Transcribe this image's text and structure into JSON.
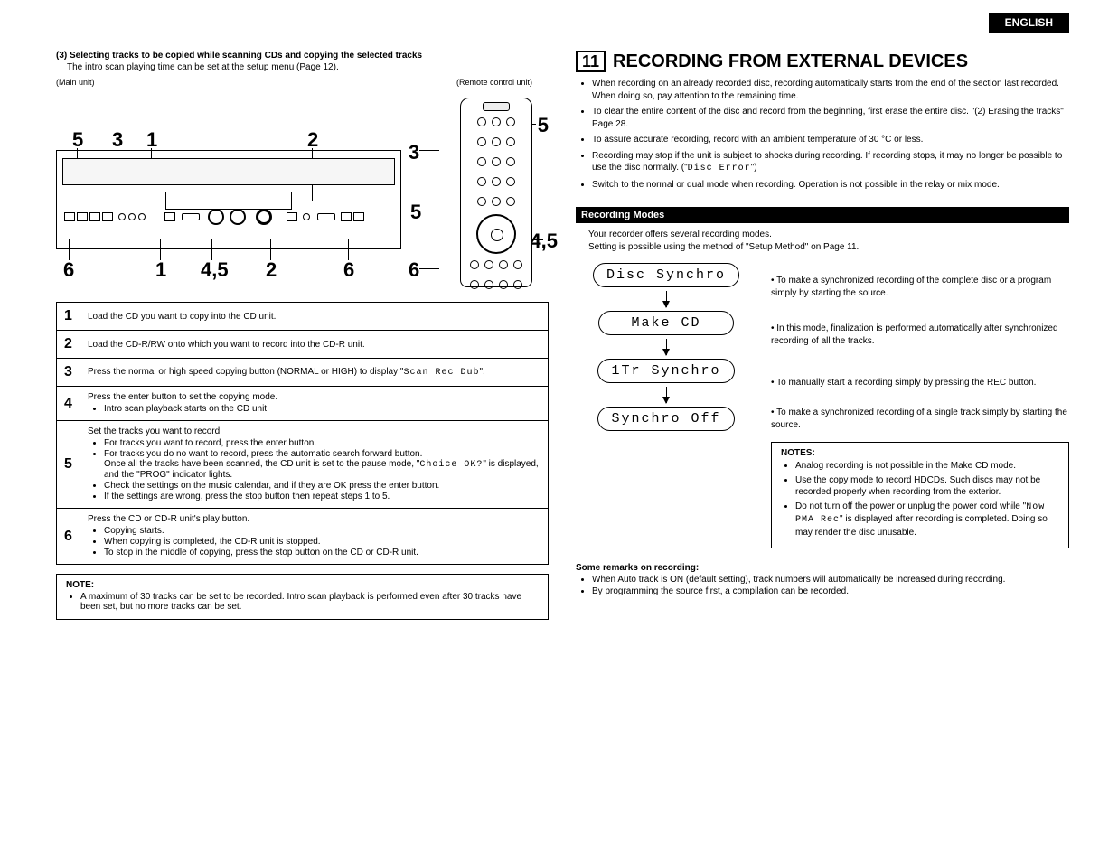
{
  "lang_tab": "ENGLISH",
  "left": {
    "heading": "(3) Selecting tracks to be copied while scanning CDs and copying the selected tracks",
    "subtext": "The intro scan playing time can be set at the setup menu (Page 12).",
    "main_unit_label": "(Main unit)",
    "remote_label": "(Remote control unit)",
    "dia_nums_main_top": [
      "5",
      "3",
      "1",
      "2"
    ],
    "dia_nums_main_bottom": [
      "6",
      "1",
      "4,5",
      "2",
      "6"
    ],
    "dia_nums_remote": [
      "5",
      "3",
      "5",
      "4,5",
      "6"
    ],
    "steps": [
      {
        "n": "1",
        "body": "Load the CD you want to copy into the CD unit."
      },
      {
        "n": "2",
        "body": "Load the CD-R/RW onto which you want to record into the CD-R unit."
      },
      {
        "n": "3",
        "body": "Press the normal or high speed copying button (NORMAL or HIGH) to display \"<span class='mono'>Scan Rec Dub</span>\"."
      },
      {
        "n": "4",
        "body": "Press the enter button to set the copying mode.",
        "bullets": [
          "Intro scan playback starts on the CD unit."
        ]
      },
      {
        "n": "5",
        "body": "Set the tracks you want to record.",
        "bullets": [
          "For tracks you want to record, press the enter button.",
          "For tracks you do no want to record, press the automatic search forward button.<br>Once all the tracks have been scanned, the CD unit is set to the pause mode, \"<span class='mono'>Choice OK?</span>\" is displayed, and the \"PROG\" indicator lights.",
          "Check the settings on the music calendar, and if they are OK press the enter button.",
          "If the settings are wrong, press the stop button then repeat steps 1 to 5."
        ]
      },
      {
        "n": "6",
        "body": "Press the CD or CD-R unit's play button.",
        "bullets": [
          "Copying starts.",
          "When copying is completed, the CD-R unit is stopped.",
          "To stop in the middle of copying, press the stop button on the CD or CD-R unit."
        ]
      }
    ],
    "note_title": "NOTE:",
    "note_body": "A maximum of 30 tracks can be set to be recorded.  Intro scan playback is performed even after 30 tracks have been set, but no more tracks can be set."
  },
  "right": {
    "sec_num": "11",
    "title": "RECORDING FROM EXTERNAL DEVICES",
    "bullets": [
      "When recording on an already recorded disc, recording automatically starts from the end of the section last recorded. When doing so, pay attention to the remaining time.",
      "To clear the entire content of the disc and record from the beginning, first erase the entire disc.  \"(2) Erasing the tracks\" Page 28.",
      "To assure accurate recording, record with an ambient temperature of 30 °C or less.",
      "Recording may stop if the unit is subject to shocks during recording.  If recording stops, it may no longer be possible to use the disc normally.  (\"<span class='mono'>Disc Error</span>\")",
      "Switch to the normal or dual mode when recording.  Operation is not possible in the relay or mix mode."
    ],
    "modes_header": "Recording Modes",
    "modes_intro1": "Your recorder offers several recording modes.",
    "modes_intro2": "Setting is possible using the method of \"Setup Method\" on Page 11.",
    "modes": [
      {
        "label": "Disc Synchro",
        "desc": "To make a synchronized recording of the complete disc or a program simply by starting the source."
      },
      {
        "label": "Make CD",
        "desc": "In this mode, finalization is performed automatically after synchronized recording of all the tracks."
      },
      {
        "label": "1Tr Synchro",
        "desc": "To manually start a recording simply by pressing the REC button."
      },
      {
        "label": "Synchro Off",
        "desc": "To make a synchronized recording of a single track simply by starting the source."
      }
    ],
    "notes_title": "NOTES:",
    "notes": [
      "Analog recording is not possible in the Make CD mode.",
      "Use the copy mode to record HDCDs.  Such discs may not be recorded properly when recording from the exterior.",
      "Do not turn off the power or unplug the power cord while \"<span class='mono'>Now PMA Rec</span>\" is displayed after recording is completed.  Doing so may render the disc unusable."
    ],
    "remarks_title": "Some remarks on recording:",
    "remarks": [
      "When Auto track is ON (default setting), track numbers will automatically be increased during recording.",
      "By programming the source first, a compilation can be recorded."
    ]
  }
}
